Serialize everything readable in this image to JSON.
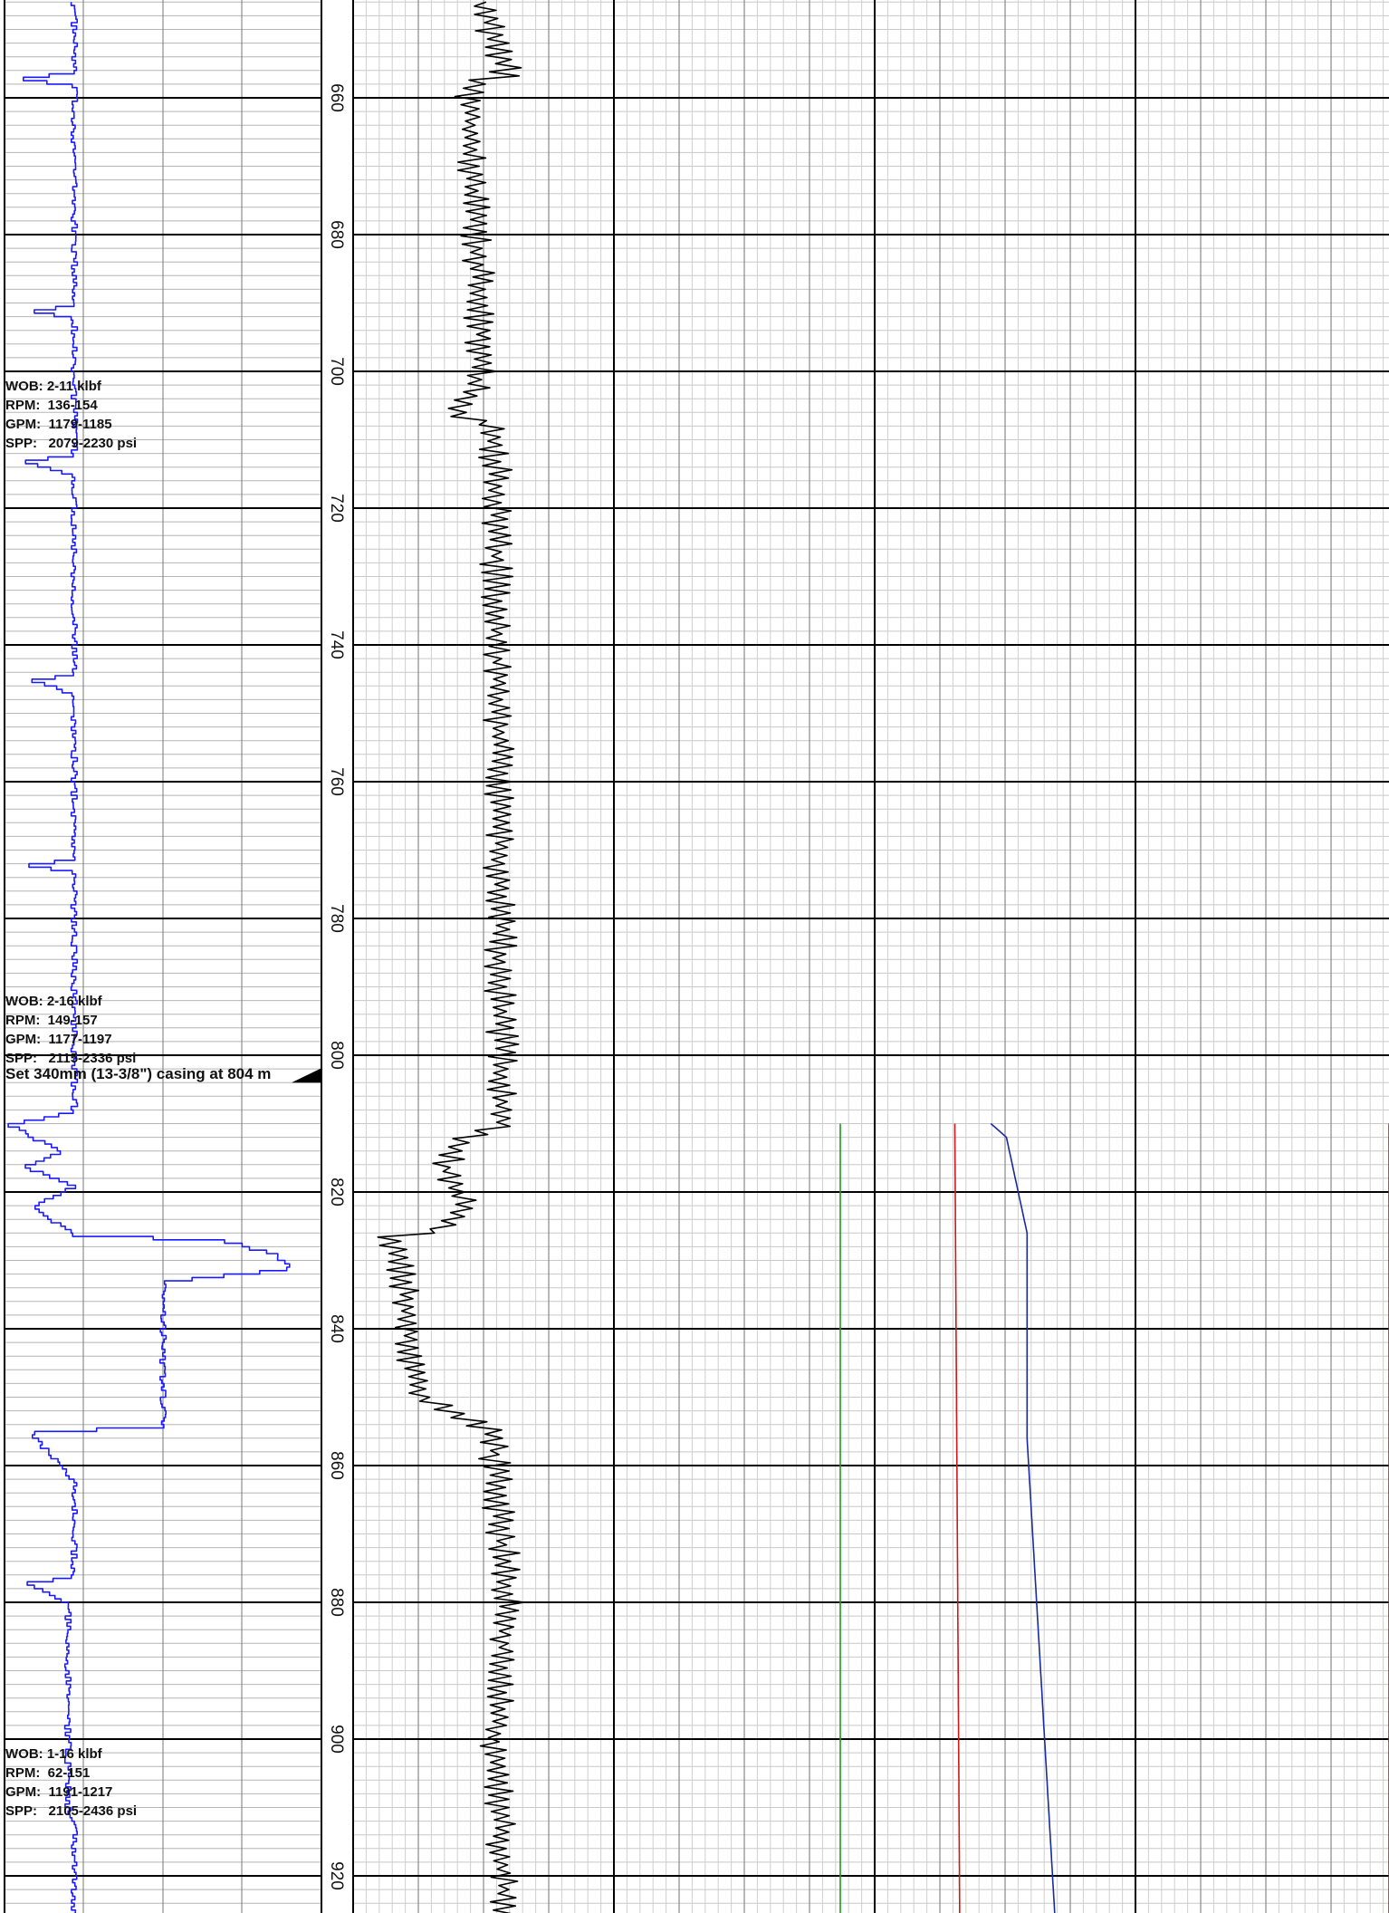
{
  "chart_data": {
    "type": "line",
    "depth_ticks": [
      660,
      680,
      700,
      720,
      740,
      760,
      780,
      800,
      820,
      840,
      860,
      880,
      900,
      920
    ],
    "depth_range": [
      646,
      934
    ],
    "annotations": [
      {
        "depth": 701,
        "lines": [
          "WOB: 2-11 klbf",
          "RPM:  136-154",
          "GPM:  1179-1185",
          "SPP:   2079-2230 psi"
        ]
      },
      {
        "depth": 791,
        "lines": [
          "WOB: 2-16 klbf",
          "RPM:  149-157",
          "GPM:  1177-1197",
          "SPP:   2115-2336 psi"
        ]
      },
      {
        "depth": 901,
        "lines": [
          "WOB: 1-16 klbf",
          "RPM:  62-151",
          "GPM:  1191-1217",
          "SPP:   2105-2436 psi"
        ]
      }
    ],
    "casing_note": {
      "text": "Set 340mm (13-3/8\") casing at 804 m",
      "depth": 804
    },
    "series": [
      {
        "color": "#1a1aff",
        "track": 1,
        "profile": [
          [
            646,
            0.22
          ],
          [
            656,
            0.22
          ],
          [
            657,
            0.05
          ],
          [
            658,
            0.22
          ],
          [
            690,
            0.22
          ],
          [
            691,
            0.1
          ],
          [
            692,
            0.22
          ],
          [
            712,
            0.22
          ],
          [
            713,
            0.06
          ],
          [
            715,
            0.22
          ],
          [
            744,
            0.22
          ],
          [
            745,
            0.09
          ],
          [
            747,
            0.22
          ],
          [
            771,
            0.22
          ],
          [
            772,
            0.08
          ],
          [
            773,
            0.22
          ],
          [
            808,
            0.22
          ],
          [
            810,
            0.02
          ],
          [
            814,
            0.18
          ],
          [
            816,
            0.06
          ],
          [
            819,
            0.22
          ],
          [
            822,
            0.09
          ],
          [
            826,
            0.22
          ],
          [
            827,
            0.7
          ],
          [
            829,
            0.86
          ],
          [
            831,
            0.9
          ],
          [
            833,
            0.5
          ],
          [
            854,
            0.5
          ],
          [
            855,
            0.09
          ],
          [
            857,
            0.12
          ],
          [
            862,
            0.22
          ],
          [
            876,
            0.22
          ],
          [
            877,
            0.07
          ],
          [
            880,
            0.2
          ],
          [
            884,
            0.2
          ],
          [
            910,
            0.2
          ],
          [
            912,
            0.22
          ],
          [
            934,
            0.22
          ]
        ]
      },
      {
        "color": "#000000",
        "track": 2,
        "profile": [
          [
            646,
            0.5
          ],
          [
            657,
            0.6
          ],
          [
            657.5,
            0.45
          ],
          [
            700,
            0.5
          ],
          [
            707,
            0.4
          ],
          [
            707.5,
            0.55
          ],
          [
            810,
            0.58
          ],
          [
            812,
            0.45
          ],
          [
            816,
            0.35
          ],
          [
            822,
            0.45
          ],
          [
            826,
            0.3
          ],
          [
            826.5,
            0.15
          ],
          [
            830,
            0.18
          ],
          [
            850,
            0.25
          ],
          [
            855,
            0.55
          ],
          [
            860,
            0.55
          ],
          [
            880,
            0.6
          ],
          [
            900,
            0.55
          ],
          [
            934,
            0.6
          ]
        ]
      },
      {
        "color": "#1a9c1a",
        "track": 3,
        "profile": [
          [
            810,
            0.44
          ],
          [
            934,
            0.44
          ]
        ]
      },
      {
        "color": "#cc1a1a",
        "track": 3,
        "profile": [
          [
            810,
            0.66
          ],
          [
            934,
            0.67
          ]
        ]
      },
      {
        "color": "#1a2aa0",
        "track": 4,
        "profile": [
          [
            810,
            0.23
          ],
          [
            812,
            0.26
          ],
          [
            826,
            0.3
          ],
          [
            856,
            0.3
          ],
          [
            934,
            0.36
          ]
        ]
      },
      {
        "color": "#cc1a1a",
        "track": 4,
        "profile": [
          [
            810,
            1.0
          ],
          [
            934,
            1.0
          ]
        ]
      }
    ]
  }
}
